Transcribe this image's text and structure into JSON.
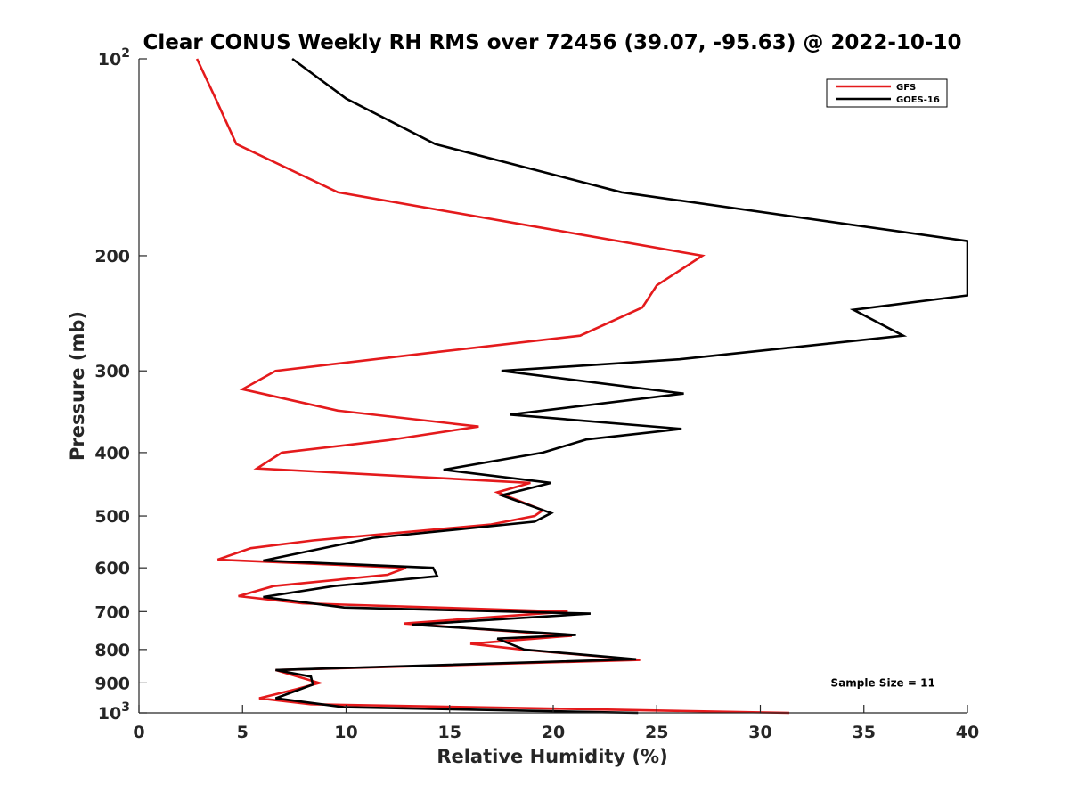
{
  "chart_data": {
    "type": "line",
    "title": "Clear CONUS Weekly RH RMS over 72456 (39.07, -95.63) @ 2022-10-10",
    "xlabel": "Relative Humidity (%)",
    "ylabel": "Pressure (mb)",
    "xlim": [
      0,
      40
    ],
    "ylim": [
      100,
      1000
    ],
    "yscale": "log",
    "y_reversed": true,
    "x_ticks": [
      0,
      5,
      10,
      15,
      20,
      25,
      30,
      35,
      40
    ],
    "y_ticks": [
      {
        "value": 100,
        "label": "10",
        "exp": "2"
      },
      {
        "value": 200,
        "label": "200"
      },
      {
        "value": 300,
        "label": "300"
      },
      {
        "value": 400,
        "label": "400"
      },
      {
        "value": 500,
        "label": "500"
      },
      {
        "value": 600,
        "label": "600"
      },
      {
        "value": 700,
        "label": "700"
      },
      {
        "value": 800,
        "label": "800"
      },
      {
        "value": 900,
        "label": "900"
      },
      {
        "value": 1000,
        "label": "10",
        "exp": "3"
      }
    ],
    "grid": false,
    "legend_position": "top-right",
    "series": [
      {
        "name": "GFS",
        "color": "#e41a1c",
        "points": [
          [
            2.8,
            100
          ],
          [
            3.7,
            115
          ],
          [
            4.7,
            135
          ],
          [
            9.6,
            160
          ],
          [
            27.2,
            200
          ],
          [
            25.0,
            222
          ],
          [
            24.3,
            240
          ],
          [
            21.3,
            265
          ],
          [
            14.7,
            280
          ],
          [
            6.6,
            300
          ],
          [
            5.0,
            320
          ],
          [
            9.6,
            345
          ],
          [
            16.4,
            365
          ],
          [
            12.0,
            383
          ],
          [
            6.9,
            400
          ],
          [
            5.7,
            423
          ],
          [
            18.9,
            445
          ],
          [
            17.3,
            460
          ],
          [
            19.5,
            490
          ],
          [
            19.1,
            500
          ],
          [
            17.0,
            515
          ],
          [
            8.4,
            545
          ],
          [
            5.4,
            560
          ],
          [
            3.8,
            583
          ],
          [
            12.9,
            600
          ],
          [
            12.0,
            615
          ],
          [
            6.5,
            640
          ],
          [
            4.8,
            663
          ],
          [
            7.9,
            680
          ],
          [
            20.7,
            700
          ],
          [
            12.8,
            730
          ],
          [
            20.9,
            762
          ],
          [
            16.0,
            784
          ],
          [
            18.5,
            800
          ],
          [
            24.2,
            830
          ],
          [
            6.6,
            860
          ],
          [
            8.7,
            900
          ],
          [
            7.6,
            920
          ],
          [
            5.8,
            950
          ],
          [
            8.3,
            970
          ],
          [
            31.4,
            1000
          ]
        ]
      },
      {
        "name": "GOES-16",
        "color": "#000000",
        "points": [
          [
            7.4,
            100
          ],
          [
            10.0,
            115
          ],
          [
            14.3,
            135
          ],
          [
            23.3,
            160
          ],
          [
            40.0,
            190
          ],
          [
            40.0,
            230
          ],
          [
            34.5,
            242
          ],
          [
            36.9,
            265
          ],
          [
            26.1,
            288
          ],
          [
            17.5,
            300
          ],
          [
            26.3,
            325
          ],
          [
            17.9,
            350
          ],
          [
            26.2,
            368
          ],
          [
            21.6,
            382
          ],
          [
            19.5,
            400
          ],
          [
            14.7,
            425
          ],
          [
            19.9,
            445
          ],
          [
            17.5,
            465
          ],
          [
            19.9,
            495
          ],
          [
            19.1,
            510
          ],
          [
            11.3,
            540
          ],
          [
            6.0,
            585
          ],
          [
            14.2,
            600
          ],
          [
            14.4,
            618
          ],
          [
            9.4,
            640
          ],
          [
            6.0,
            665
          ],
          [
            9.9,
            690
          ],
          [
            21.8,
            705
          ],
          [
            13.2,
            733
          ],
          [
            21.1,
            760
          ],
          [
            17.3,
            770
          ],
          [
            18.6,
            800
          ],
          [
            24.0,
            828
          ],
          [
            6.6,
            860
          ],
          [
            8.3,
            880
          ],
          [
            8.4,
            905
          ],
          [
            6.6,
            950
          ],
          [
            9.9,
            980
          ],
          [
            24.1,
            1000
          ]
        ]
      }
    ],
    "annotations": [
      {
        "text": "Sample Size = 11",
        "x": 33.4,
        "y": 900
      }
    ]
  }
}
